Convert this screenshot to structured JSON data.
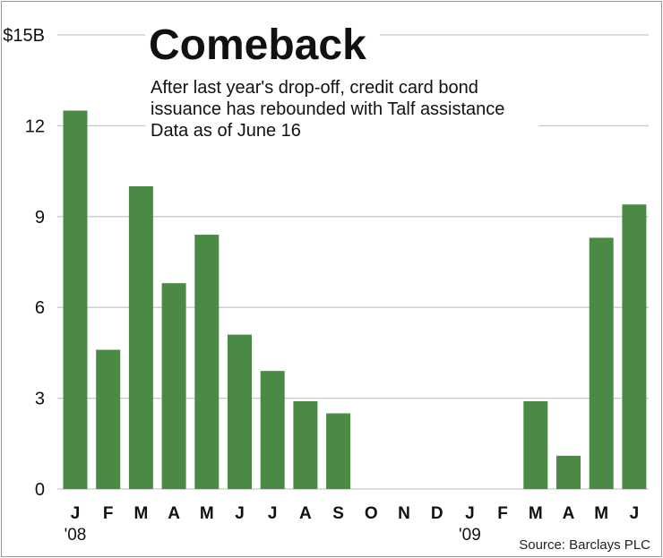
{
  "chart_data": {
    "type": "bar",
    "title": "Comeback",
    "subtitle": [
      "After last year's drop-off, credit card bond",
      "issuance has rebounded with Talf assistance",
      "Data as of June 16"
    ],
    "ylabel": "$15B",
    "ylim": [
      0,
      15
    ],
    "yticks": [
      {
        "value": 0,
        "label": "0"
      },
      {
        "value": 3,
        "label": "3"
      },
      {
        "value": 6,
        "label": "6"
      },
      {
        "value": 9,
        "label": "9"
      },
      {
        "value": 12,
        "label": "12"
      },
      {
        "value": 15,
        "label": "$15B"
      }
    ],
    "categories": [
      "J",
      "F",
      "M",
      "A",
      "M",
      "J",
      "J",
      "A",
      "S",
      "O",
      "N",
      "D",
      "J",
      "F",
      "M",
      "A",
      "M",
      "J"
    ],
    "values": [
      12.5,
      4.6,
      10.0,
      6.8,
      8.4,
      5.1,
      3.9,
      2.9,
      2.5,
      0,
      0,
      0,
      0,
      0,
      2.9,
      1.1,
      8.3,
      9.4
    ],
    "year_labels": [
      {
        "index": 0,
        "label": "'08"
      },
      {
        "index": 12,
        "label": "'09"
      }
    ],
    "bar_color": "#4a8a45",
    "grid": true,
    "source": "Source: Barclays PLC"
  }
}
